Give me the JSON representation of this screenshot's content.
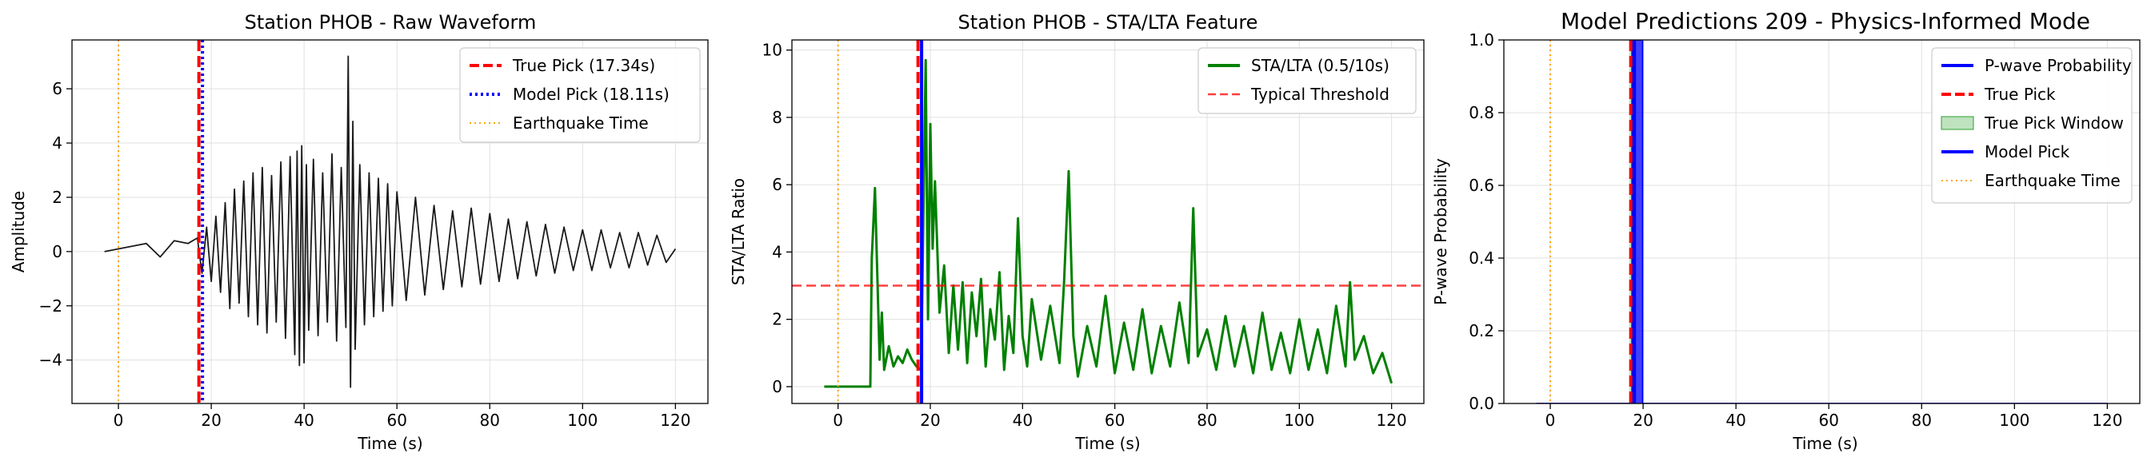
{
  "figure": {
    "background": "#ffffff"
  },
  "chart_data": [
    {
      "id": "waveform",
      "type": "line",
      "title": "Station PHOB - Raw Waveform",
      "xlabel": "Time (s)",
      "ylabel": "Amplitude",
      "xlim": [
        -10,
        127
      ],
      "ylim": [
        -5.6,
        7.8
      ],
      "xticks": [
        0,
        20,
        40,
        60,
        80,
        100,
        120
      ],
      "yticks": [
        -4,
        -2,
        0,
        2,
        4,
        6
      ],
      "grid": true,
      "legend_position": "upper right",
      "series": [
        {
          "name": "",
          "color": "#1a1a1a",
          "x": [
            -3,
            0,
            3,
            6,
            9,
            12,
            15,
            17,
            18,
            19,
            20,
            21,
            22,
            23,
            24,
            25,
            26,
            27,
            28,
            29,
            30,
            31,
            32,
            33,
            34,
            35,
            36,
            37,
            38,
            38.5,
            39,
            39.5,
            40,
            40.5,
            41,
            42,
            43,
            44,
            45,
            46,
            47,
            48,
            49,
            49.5,
            50,
            50.5,
            51,
            52,
            53,
            54,
            55,
            56,
            57,
            58,
            59,
            60,
            62,
            64,
            66,
            68,
            70,
            72,
            74,
            76,
            78,
            80,
            82,
            84,
            86,
            88,
            90,
            92,
            94,
            96,
            98,
            100,
            102,
            104,
            106,
            108,
            110,
            112,
            114,
            116,
            118,
            120
          ],
          "y": [
            0,
            0.1,
            0.2,
            0.3,
            -0.2,
            0.4,
            0.3,
            0.5,
            -0.8,
            0.9,
            -1.1,
            1.3,
            -1.5,
            1.8,
            -2.1,
            2.3,
            -1.9,
            2.6,
            -2.4,
            2.9,
            -2.7,
            3.1,
            -3.0,
            2.8,
            -2.6,
            3.3,
            -3.2,
            3.5,
            -3.8,
            3.7,
            -4.2,
            3.9,
            -4.1,
            3.2,
            -2.9,
            3.4,
            -3.1,
            2.9,
            -2.6,
            3.6,
            -3.3,
            3.1,
            -2.8,
            7.2,
            -5.0,
            4.8,
            -3.6,
            3.2,
            -2.7,
            2.9,
            -2.4,
            2.7,
            -2.2,
            2.5,
            -2.0,
            2.2,
            -1.8,
            2.0,
            -1.6,
            1.7,
            -1.4,
            1.5,
            -1.3,
            1.6,
            -1.2,
            1.4,
            -1.1,
            1.2,
            -1.0,
            1.1,
            -0.9,
            1.0,
            -0.8,
            0.9,
            -0.7,
            0.8,
            -0.7,
            0.8,
            -0.6,
            0.7,
            -0.6,
            0.7,
            -0.5,
            0.6,
            -0.4,
            0.1
          ]
        }
      ],
      "vlines": [
        {
          "name": "True Pick (17.34s)",
          "x": 17.34,
          "color": "#ff0000",
          "style": "dashed",
          "width": 4
        },
        {
          "name": "Model Pick (18.11s)",
          "x": 18.11,
          "color": "#0000ff",
          "style": "dotted",
          "width": 4
        },
        {
          "name": "Earthquake Time",
          "x": 0,
          "color": "#ffa500",
          "style": "dotted",
          "width": 2
        }
      ],
      "legend": [
        {
          "label": "True Pick (17.34s)",
          "color": "#ff0000",
          "kind": "dashed"
        },
        {
          "label": "Model Pick (18.11s)",
          "color": "#0000ff",
          "kind": "dotted"
        },
        {
          "label": "Earthquake Time",
          "color": "#ffa500",
          "kind": "thin-dotted"
        }
      ]
    },
    {
      "id": "stalta",
      "type": "line",
      "title": "Station PHOB - STA/LTA Feature",
      "xlabel": "Time (s)",
      "ylabel": "STA/LTA Ratio",
      "xlim": [
        -10,
        127
      ],
      "ylim": [
        -0.5,
        10.3
      ],
      "xticks": [
        0,
        20,
        40,
        60,
        80,
        100,
        120
      ],
      "yticks": [
        0,
        2,
        4,
        6,
        8,
        10
      ],
      "grid": true,
      "legend_position": "upper right",
      "series": [
        {
          "name": "STA/LTA (0.5/10s)",
          "color": "#008000",
          "x": [
            -3,
            7,
            7.3,
            8,
            9,
            9.5,
            10,
            11,
            12,
            13,
            14,
            15,
            16,
            17,
            18,
            19,
            19.5,
            20,
            20.5,
            21,
            22,
            23,
            24,
            25,
            26,
            27,
            28,
            29,
            30,
            31,
            32,
            33,
            34,
            35,
            36,
            37,
            38,
            39,
            40,
            41,
            42,
            44,
            46,
            48,
            49,
            50,
            51,
            52,
            54,
            56,
            58,
            60,
            62,
            64,
            66,
            68,
            70,
            72,
            74,
            76,
            77,
            78,
            80,
            82,
            84,
            86,
            88,
            90,
            92,
            94,
            96,
            98,
            100,
            102,
            104,
            106,
            108,
            110,
            111,
            112,
            114,
            116,
            118,
            120
          ],
          "y": [
            0,
            0,
            3.8,
            5.9,
            0.8,
            2.2,
            0.5,
            1.2,
            0.6,
            0.9,
            0.7,
            1.1,
            0.8,
            0.6,
            0.5,
            9.7,
            2.0,
            7.8,
            4.1,
            6.1,
            2.2,
            3.6,
            1.0,
            3.0,
            1.1,
            3.1,
            0.7,
            2.8,
            1.5,
            3.2,
            0.6,
            2.3,
            1.4,
            3.4,
            0.5,
            2.1,
            1.0,
            5.0,
            1.5,
            0.6,
            2.6,
            0.8,
            2.4,
            0.7,
            3.1,
            6.4,
            1.5,
            0.3,
            1.8,
            0.6,
            2.7,
            0.4,
            1.9,
            0.5,
            2.3,
            0.4,
            1.8,
            0.6,
            2.5,
            0.7,
            5.3,
            0.9,
            1.7,
            0.5,
            2.1,
            0.6,
            1.8,
            0.4,
            2.2,
            0.5,
            1.6,
            0.4,
            2.0,
            0.5,
            1.7,
            0.4,
            2.4,
            0.6,
            3.1,
            0.8,
            1.5,
            0.4,
            1.0,
            0.1
          ]
        }
      ],
      "hlines": [
        {
          "name": "Typical Threshold",
          "y": 3,
          "color": "#ff0000",
          "style": "dashed",
          "opacity": 0.75
        }
      ],
      "vlines": [
        {
          "x": 17.34,
          "color": "#ff0000",
          "style": "dashed",
          "width": 4
        },
        {
          "x": 18.11,
          "color": "#0000ff",
          "style": "solid",
          "width": 4
        },
        {
          "x": 0,
          "color": "#ffa500",
          "style": "dotted",
          "width": 2
        }
      ],
      "legend": [
        {
          "label": "STA/LTA (0.5/10s)",
          "color": "#008000",
          "kind": "solid"
        },
        {
          "label": "Typical Threshold",
          "color": "#ff0000",
          "kind": "dashed-light"
        }
      ]
    },
    {
      "id": "predictions",
      "type": "area",
      "title": "Model Predictions 209 - Physics-Informed Mode",
      "xlabel": "Time (s)",
      "ylabel": "P-wave Probability",
      "xlim": [
        -10,
        127
      ],
      "ylim": [
        0,
        1.0
      ],
      "xticks": [
        0,
        20,
        40,
        60,
        80,
        100,
        120
      ],
      "yticks": [
        0.0,
        0.2,
        0.4,
        0.6,
        0.8,
        1.0
      ],
      "grid": true,
      "legend_position": "upper right",
      "series": [
        {
          "name": "P-wave Probability",
          "color": "#0000ff",
          "x": [
            -3,
            17.6,
            17.6,
            19.9,
            19.9,
            120
          ],
          "y": [
            0,
            0,
            1,
            1,
            0,
            0
          ]
        }
      ],
      "true_pick_window": [
        17.0,
        18.0
      ],
      "vlines": [
        {
          "x": 17.34,
          "color": "#ff0000",
          "style": "dashed",
          "width": 4
        },
        {
          "x": 18.11,
          "color": "#0000ff",
          "style": "solid",
          "width": 4
        },
        {
          "x": 0,
          "color": "#ffa500",
          "style": "dotted",
          "width": 2
        }
      ],
      "legend": [
        {
          "label": "P-wave Probability",
          "color": "#0000ff",
          "kind": "solid"
        },
        {
          "label": "True Pick",
          "color": "#ff0000",
          "kind": "dashed"
        },
        {
          "label": "True Pick Window",
          "color": "#2ca02c",
          "kind": "patch"
        },
        {
          "label": "Model Pick",
          "color": "#0000ff",
          "kind": "solid"
        },
        {
          "label": "Earthquake Time",
          "color": "#ffa500",
          "kind": "thin-dotted"
        }
      ]
    }
  ]
}
